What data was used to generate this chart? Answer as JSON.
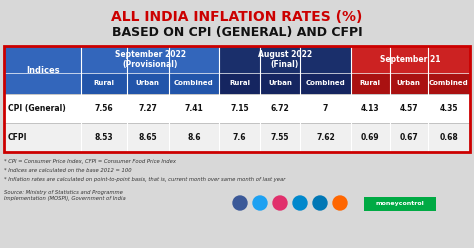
{
  "title_line1": "ALL INDIA INFLATION RATES (%)",
  "title_line2": "BASED ON CPI (GENERAL) AND CFPI",
  "title_line1_color": "#cc0000",
  "title_line2_color": "#111111",
  "bg_color": "#d8d8d8",
  "header1_text": "September 2022\n(Provisional)",
  "header2_text": "August 2022\n(Final)",
  "header3_text": "September 21",
  "header1_color": "#3366bb",
  "header2_color": "#1a2f6b",
  "header3_color": "#cc2222",
  "subheader1_color": "#2255aa",
  "subheader2_color": "#152560",
  "subheader3_color": "#aa1111",
  "indices_cell_color": "#3366bb",
  "col_labels": [
    "Rural",
    "Urban",
    "Combined",
    "Rural",
    "Urban",
    "Combined",
    "Rural",
    "Urban",
    "Combined"
  ],
  "row_labels": [
    "CPI (General)",
    "CFPI"
  ],
  "data": [
    [
      "7.56",
      "7.27",
      "7.41",
      "7.15",
      "6.72",
      "7",
      "4.13",
      "4.57",
      "4.35"
    ],
    [
      "8.53",
      "8.65",
      "8.6",
      "7.6",
      "7.55",
      "7.62",
      "0.69",
      "0.67",
      "0.68"
    ]
  ],
  "footnote1": "* CPI = Consumer Price Index, CFPI = Consumer Food Price Index",
  "footnote2": "* Indices are calculated on the base 2012 = 100",
  "footnote3": "* Inflation rates are calculated on point-to-point basis, that is, current month over same month of last year",
  "source_text": "Source: Ministry of Statistics and Programme\nImplementation (MOSPI), Government of India",
  "table_border_color": "#cc0000",
  "row_bg_0": "#ffffff",
  "row_bg_1": "#f0f0f0",
  "data_text_color": "#111111",
  "icon_colors": [
    "#3b5998",
    "#1da1f2",
    "#e1306c",
    "#0088cc",
    "#0077b5",
    "#ff6600"
  ],
  "mc_color": "#00aa44"
}
